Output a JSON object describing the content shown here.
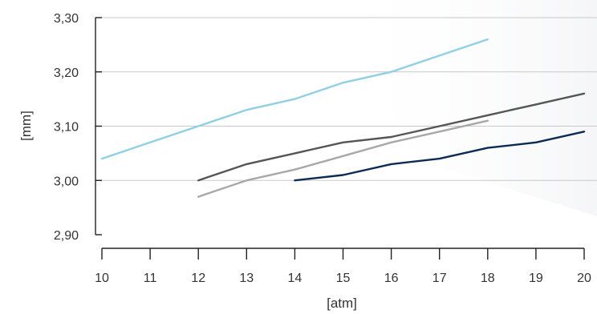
{
  "chart_data": {
    "type": "line",
    "xlabel": "[atm]",
    "ylabel": "[mm]",
    "xlim": [
      10,
      20
    ],
    "ylim": [
      2.9,
      3.3
    ],
    "x_ticks": [
      "10",
      "11",
      "12",
      "13",
      "14",
      "15",
      "16",
      "17",
      "18",
      "19",
      "20"
    ],
    "y_ticks": [
      {
        "value": 3.3,
        "label": "3,30"
      },
      {
        "value": 3.2,
        "label": "3,20"
      },
      {
        "value": 3.1,
        "label": "3,10"
      },
      {
        "value": 3.0,
        "label": "3,00"
      },
      {
        "value": 2.9,
        "label": "2,90"
      }
    ],
    "grid": "horizontal",
    "series": [
      {
        "color": "#8fd0e6",
        "x": [
          10,
          11,
          12,
          13,
          14,
          15,
          16,
          17,
          18
        ],
        "y": [
          3.04,
          3.07,
          3.1,
          3.13,
          3.15,
          3.18,
          3.2,
          3.23,
          3.26
        ]
      },
      {
        "color": "#555555",
        "x": [
          12,
          13,
          14,
          15,
          16,
          17,
          18,
          19,
          20
        ],
        "y": [
          3.0,
          3.03,
          3.05,
          3.07,
          3.08,
          3.1,
          3.12,
          3.14,
          3.16
        ]
      },
      {
        "color": "#a8a8a8",
        "x": [
          12,
          13,
          14,
          15,
          16,
          17,
          18
        ],
        "y": [
          2.97,
          3.0,
          3.02,
          3.045,
          3.07,
          3.09,
          3.11
        ]
      },
      {
        "color": "#0b2b55",
        "x": [
          14,
          15,
          16,
          17,
          18,
          19,
          20
        ],
        "y": [
          3.0,
          3.01,
          3.03,
          3.04,
          3.06,
          3.07,
          3.09
        ]
      }
    ]
  }
}
